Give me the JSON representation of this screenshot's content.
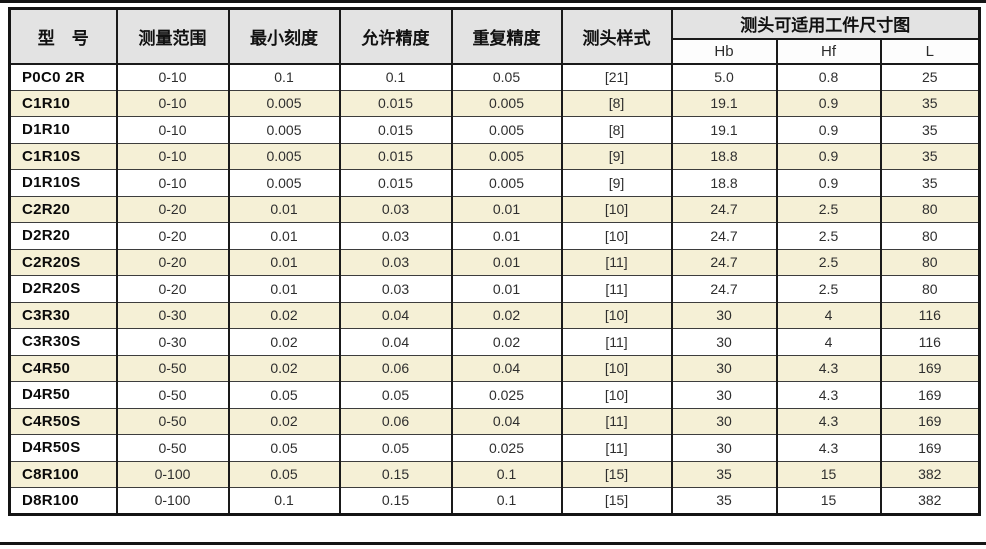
{
  "colors": {
    "header_bg": "#e3e3e3",
    "row_highlight_bg": "#f5f0d6",
    "row_default_bg": "#ffffff",
    "border": "#1a1a1a"
  },
  "table": {
    "headers": {
      "model": "型　号",
      "range": "测量范围",
      "min_scale": "最小刻度",
      "accuracy": "允许精度",
      "repeatability": "重复精度",
      "probe_style": "测头样式",
      "size_group": "测头可适用工件尺寸图",
      "sub": [
        "Hb",
        "Hf",
        "L"
      ]
    },
    "rows": [
      {
        "model": "P0C0 2R",
        "values": [
          "0-10",
          "0.1",
          "0.1",
          "0.05",
          "[21]",
          "5.0",
          "0.8",
          "25"
        ]
      },
      {
        "model": "C1R10",
        "values": [
          "0-10",
          "0.005",
          "0.015",
          "0.005",
          "[8]",
          "19.1",
          "0.9",
          "35"
        ]
      },
      {
        "model": "D1R10",
        "values": [
          "0-10",
          "0.005",
          "0.015",
          "0.005",
          "[8]",
          "19.1",
          "0.9",
          "35"
        ]
      },
      {
        "model": "C1R10S",
        "values": [
          "0-10",
          "0.005",
          "0.015",
          "0.005",
          "[9]",
          "18.8",
          "0.9",
          "35"
        ]
      },
      {
        "model": "D1R10S",
        "values": [
          "0-10",
          "0.005",
          "0.015",
          "0.005",
          "[9]",
          "18.8",
          "0.9",
          "35"
        ]
      },
      {
        "model": "C2R20",
        "values": [
          "0-20",
          "0.01",
          "0.03",
          "0.01",
          "[10]",
          "24.7",
          "2.5",
          "80"
        ]
      },
      {
        "model": "D2R20",
        "values": [
          "0-20",
          "0.01",
          "0.03",
          "0.01",
          "[10]",
          "24.7",
          "2.5",
          "80"
        ]
      },
      {
        "model": "C2R20S",
        "values": [
          "0-20",
          "0.01",
          "0.03",
          "0.01",
          "[11]",
          "24.7",
          "2.5",
          "80"
        ]
      },
      {
        "model": "D2R20S",
        "values": [
          "0-20",
          "0.01",
          "0.03",
          "0.01",
          "[11]",
          "24.7",
          "2.5",
          "80"
        ]
      },
      {
        "model": "C3R30",
        "values": [
          "0-30",
          "0.02",
          "0.04",
          "0.02",
          "[10]",
          "30",
          "4",
          "116"
        ]
      },
      {
        "model": "C3R30S",
        "values": [
          "0-30",
          "0.02",
          "0.04",
          "0.02",
          "[11]",
          "30",
          "4",
          "116"
        ]
      },
      {
        "model": "C4R50",
        "values": [
          "0-50",
          "0.02",
          "0.06",
          "0.04",
          "[10]",
          "30",
          "4.3",
          "169"
        ]
      },
      {
        "model": "D4R50",
        "values": [
          "0-50",
          "0.05",
          "0.05",
          "0.025",
          "[10]",
          "30",
          "4.3",
          "169"
        ]
      },
      {
        "model": "C4R50S",
        "values": [
          "0-50",
          "0.02",
          "0.06",
          "0.04",
          "[11]",
          "30",
          "4.3",
          "169"
        ]
      },
      {
        "model": "D4R50S",
        "values": [
          "0-50",
          "0.05",
          "0.05",
          "0.025",
          "[11]",
          "30",
          "4.3",
          "169"
        ]
      },
      {
        "model": "C8R100",
        "values": [
          "0-100",
          "0.05",
          "0.15",
          "0.1",
          "[15]",
          "35",
          "15",
          "382"
        ]
      },
      {
        "model": "D8R100",
        "values": [
          "0-100",
          "0.1",
          "0.15",
          "0.1",
          "[15]",
          "35",
          "15",
          "382"
        ]
      }
    ]
  }
}
